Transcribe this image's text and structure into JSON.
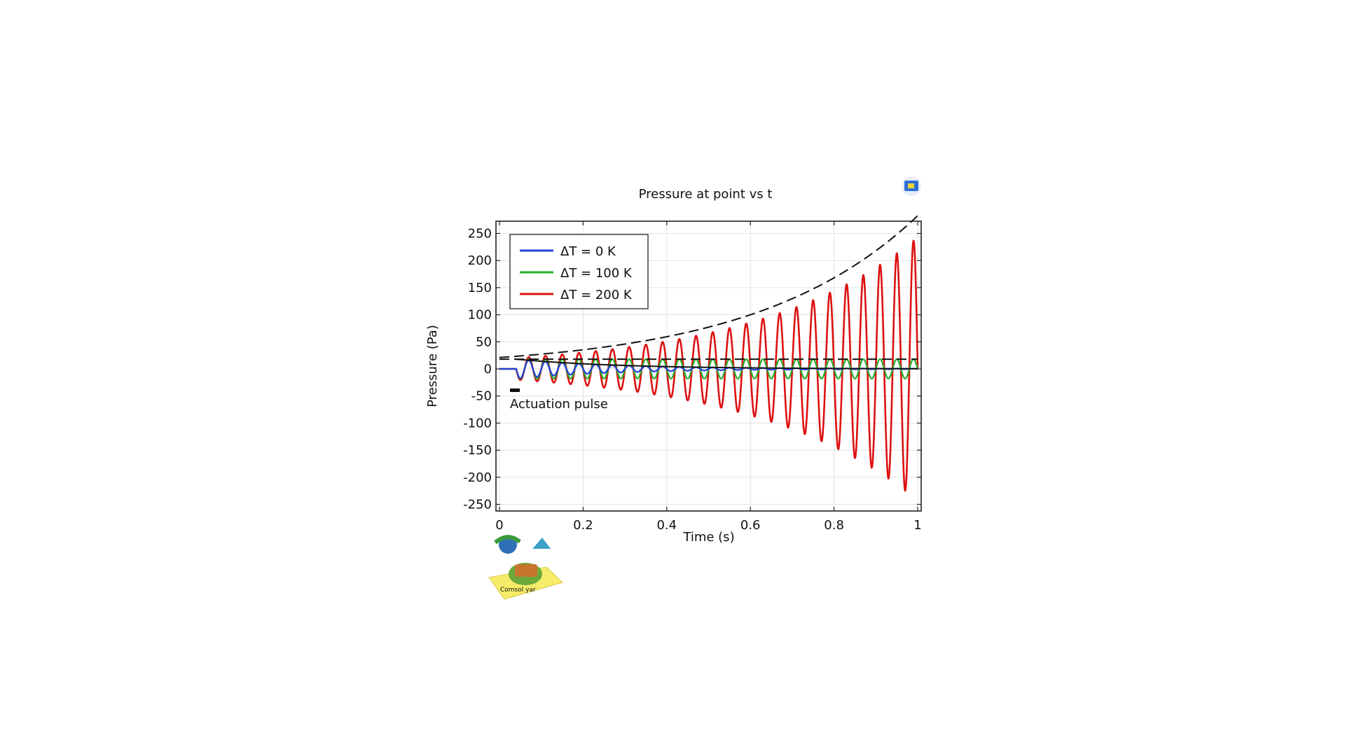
{
  "chart_data": {
    "type": "line",
    "title": "Pressure at point vs t",
    "xlabel": "Time (s)",
    "ylabel": "Pressure (Pa)",
    "xlim": [
      0,
      1
    ],
    "ylim": [
      -260,
      260
    ],
    "xticks": [
      0,
      0.2,
      0.4,
      0.6,
      0.8,
      1
    ],
    "xtick_labels": [
      "0",
      "0.2",
      "0.4",
      "0.6",
      "0.8",
      "1"
    ],
    "yticks": [
      250,
      200,
      150,
      100,
      50,
      0,
      -50,
      -100,
      -150,
      -200,
      -250
    ],
    "ytick_labels": [
      "250",
      "200",
      "150",
      "100",
      "50",
      "0",
      "-50",
      "-100",
      "-150",
      "-200",
      "-250"
    ],
    "grid": true,
    "legend_position": "top-left",
    "series": [
      {
        "name": "ΔT = 0 K",
        "color": "#1f3fdc",
        "signal": {
          "start": 0.04,
          "frequency": 25,
          "amplitude0": 18,
          "growth": -4.0
        }
      },
      {
        "name": "ΔT = 100 K",
        "color": "#22b02a",
        "signal": {
          "start": 0.04,
          "frequency": 25,
          "amplitude0": 18,
          "growth": 0.0
        }
      },
      {
        "name": "ΔT = 200 K",
        "color": "#dd1111",
        "signal": {
          "start": 0.04,
          "frequency": 25,
          "amplitude0": 20,
          "growth": 2.6
        }
      }
    ],
    "envelopes": [
      {
        "name": "growth envelope",
        "style": "dashed",
        "color": "#111111",
        "amplitude0": 21,
        "growth": 2.6,
        "t_start": 0.0,
        "t_end": 1.0
      },
      {
        "name": "neutral envelope",
        "style": "dashed",
        "color": "#111111",
        "amplitude0": 18,
        "growth": 0.0,
        "t_start": 0.0,
        "t_end": 1.0
      },
      {
        "name": "decay envelope",
        "style": "solid",
        "color": "#111111",
        "amplitude0": 18,
        "growth": -4.0,
        "t_start": 0.04,
        "t_end": 1.0
      }
    ],
    "annotations": [
      {
        "text": "Actuation pulse",
        "t_start": 0.02,
        "t_end": 0.045,
        "y": -20
      }
    ]
  },
  "watermark": {
    "text": "Comsol yar"
  }
}
